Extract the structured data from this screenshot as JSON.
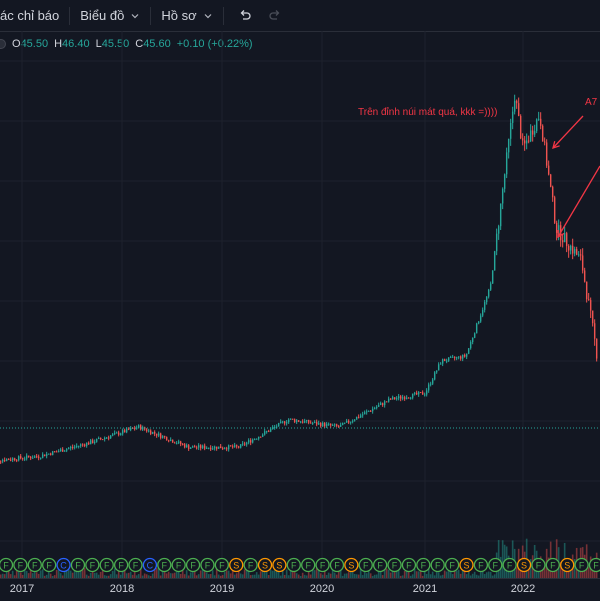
{
  "toolbar": {
    "indicators_label": "ác chỉ báo",
    "chart_label": "Biểu đồ",
    "profile_label": "Hồ sơ"
  },
  "legend": {
    "open_label": "O",
    "open_value": "45.50",
    "high_label": "H",
    "high_value": "46.40",
    "low_label": "L",
    "low_value": "45.50",
    "close_label": "C",
    "close_value": "45.60",
    "change": "+0.10 (+0.22%)"
  },
  "annotations": {
    "peak_text": "Trên đỉnh núi mát quá, kkk =))))",
    "side_text": "A7"
  },
  "colors": {
    "up": "#26a69a",
    "down": "#ef5350",
    "annotation": "#f23645",
    "background": "#131722",
    "event_green": "#4caf50",
    "event_orange": "#ff9800",
    "event_blue": "#2962ff"
  },
  "chart_data": {
    "type": "candlestick",
    "x_ticks": [
      "2017",
      "2018",
      "2019",
      "2020",
      "2021",
      "2022"
    ],
    "last_price": 45.6,
    "price_path": [
      {
        "date": "2016-09",
        "price": 30
      },
      {
        "date": "2017-03",
        "price": 31
      },
      {
        "date": "2017-09",
        "price": 34
      },
      {
        "date": "2018-03",
        "price": 38
      },
      {
        "date": "2018-09",
        "price": 33
      },
      {
        "date": "2019-03",
        "price": 33
      },
      {
        "date": "2019-09",
        "price": 40
      },
      {
        "date": "2020-03",
        "price": 38
      },
      {
        "date": "2020-09",
        "price": 46
      },
      {
        "date": "2021-01",
        "price": 48
      },
      {
        "date": "2021-03",
        "price": 60
      },
      {
        "date": "2021-06",
        "price": 62
      },
      {
        "date": "2021-09",
        "price": 100
      },
      {
        "date": "2021-12",
        "price": 380
      },
      {
        "date": "2022-01",
        "price": 260
      },
      {
        "date": "2022-03",
        "price": 330
      },
      {
        "date": "2022-05",
        "price": 150
      },
      {
        "date": "2022-08",
        "price": 120
      },
      {
        "date": "2022-10",
        "price": 60
      }
    ],
    "event_markers": [
      "F",
      "F",
      "F",
      "F",
      "C",
      "F",
      "F",
      "F",
      "F",
      "F",
      "C",
      "F",
      "F",
      "F",
      "F",
      "F",
      "S",
      "F",
      "S",
      "S",
      "F",
      "F",
      "F",
      "F",
      "S",
      "F",
      "F",
      "F",
      "F",
      "F",
      "F",
      "F",
      "S",
      "F",
      "F",
      "F",
      "S",
      "F",
      "F",
      "S",
      "F",
      "F"
    ]
  }
}
